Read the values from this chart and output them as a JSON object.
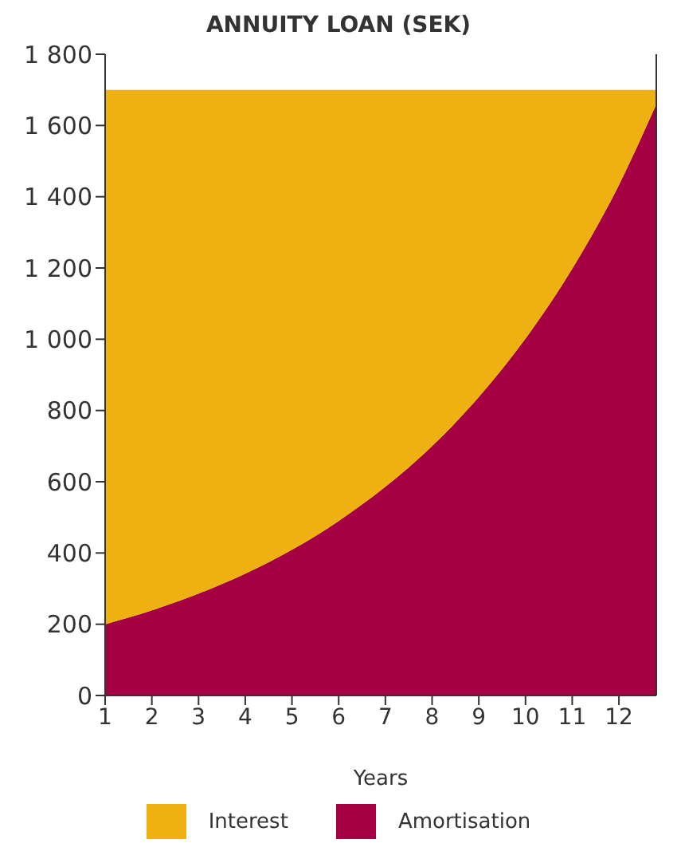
{
  "chart_data": {
    "type": "area",
    "title": "ANNUITY LOAN (SEK)",
    "xlabel": "Years",
    "stacked": true,
    "x": [
      1,
      2,
      3,
      4,
      5,
      6,
      7,
      8,
      9,
      10,
      11,
      12,
      12.8
    ],
    "series": [
      {
        "name": "Amortisation",
        "color": "#a50044",
        "values": [
          200,
          239,
          286,
          342,
          409,
          490,
          586,
          700,
          838,
          1002,
          1198,
          1433,
          1660
        ]
      },
      {
        "name": "Interest",
        "color": "#eeb111",
        "values": [
          1500,
          1461,
          1414,
          1358,
          1291,
          1210,
          1114,
          1000,
          862,
          698,
          502,
          267,
          40
        ]
      }
    ],
    "xlim": [
      1,
      12.8
    ],
    "xticks": [
      1,
      2,
      3,
      4,
      5,
      6,
      7,
      8,
      9,
      10,
      11,
      12
    ],
    "ylim": [
      0,
      1800
    ],
    "yticks": [
      0,
      200,
      400,
      600,
      800,
      {
        "value": 1000,
        "label": "1 000"
      },
      {
        "value": 1200,
        "label": "1 200"
      },
      {
        "value": 1400,
        "label": "1 400"
      },
      {
        "value": 1600,
        "label": "1 600"
      },
      {
        "value": 1800,
        "label": "1 800"
      }
    ],
    "grid": false,
    "legend": "bottom"
  }
}
